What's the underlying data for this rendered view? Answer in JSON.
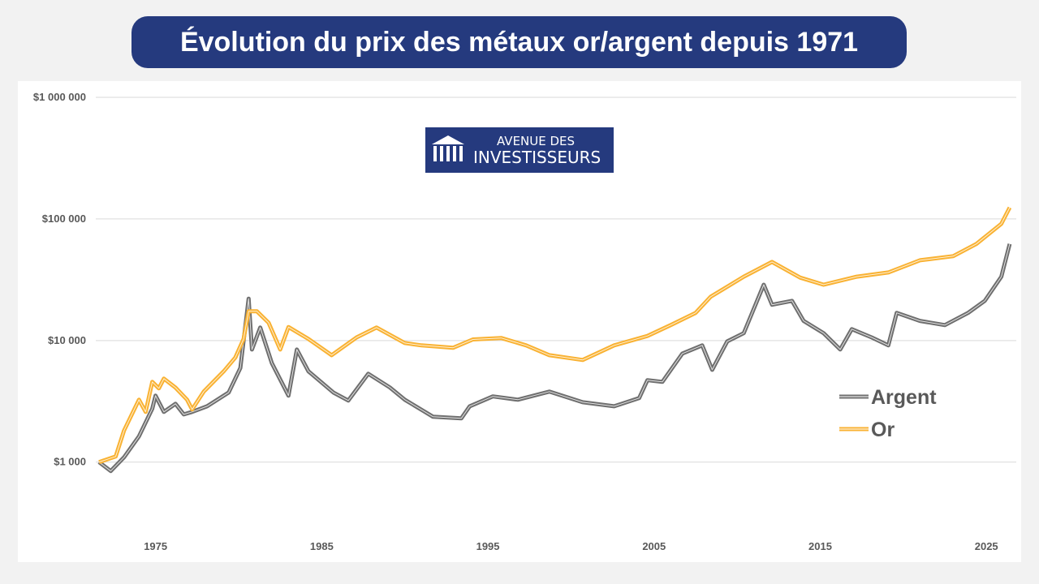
{
  "title": "Évolution du prix des métaux or/argent depuis 1971",
  "logo": {
    "line1": "AVENUE DES",
    "line2": "INVESTISSEURS",
    "color": "#253a7e"
  },
  "chart_data": {
    "type": "line",
    "title": "",
    "xlabel": "",
    "ylabel": "",
    "y_scale": "log",
    "ylim": [
      250,
      1000000
    ],
    "xlim": [
      1971.5,
      2026.7
    ],
    "grid": true,
    "legend_placement": "right",
    "y_ticks": [
      {
        "value": 1000,
        "label": "$1 000"
      },
      {
        "value": 10000,
        "label": "$10 000"
      },
      {
        "value": 100000,
        "label": "$100 000"
      },
      {
        "value": 1000000,
        "label": "$1 000 000"
      }
    ],
    "x_ticks": [
      1975,
      1985,
      1995,
      2005,
      2015,
      2025
    ],
    "series": [
      {
        "name": "Argent",
        "color": "#6f6f6f",
        "x": [
          1971.6,
          1972.3,
          1973.1,
          1974.0,
          1974.8,
          1975.0,
          1975.5,
          1976.2,
          1976.7,
          1977.2,
          1978.1,
          1979.4,
          1980.1,
          1980.6,
          1980.8,
          1981.3,
          1982.0,
          1983.0,
          1983.5,
          1984.2,
          1985.7,
          1986.6,
          1987.8,
          1989.1,
          1990.0,
          1991.7,
          1993.4,
          1993.9,
          1995.3,
          1996.8,
          1998.7,
          2000.7,
          2002.6,
          2004.1,
          2004.6,
          2005.5,
          2006.7,
          2007.9,
          2008.5,
          2009.4,
          2010.4,
          2011.6,
          2012.1,
          2013.3,
          2014.0,
          2015.2,
          2016.2,
          2016.9,
          2018.1,
          2019.1,
          2019.6,
          2021.0,
          2022.5,
          2023.9,
          2024.9,
          2025.9,
          2026.4
        ],
        "y": [
          1000,
          845,
          1096,
          1630,
          2750,
          3520,
          2590,
          3020,
          2470,
          2590,
          2880,
          3740,
          5940,
          22100,
          8430,
          12800,
          6520,
          3520,
          8430,
          5580,
          3740,
          3210,
          5330,
          4110,
          3260,
          2360,
          2290,
          2880,
          3470,
          3260,
          3800,
          3110,
          2880,
          3360,
          4720,
          4570,
          7810,
          9120,
          5750,
          9840,
          11500,
          28800,
          19700,
          21200,
          14500,
          11500,
          8430,
          12400,
          10600,
          9120,
          16900,
          14500,
          13400,
          16900,
          21200,
          33500,
          62300
        ]
      },
      {
        "name": "Or",
        "color": "#f9b233",
        "x": [
          1971.6,
          1972.6,
          1973.1,
          1974.0,
          1974.4,
          1974.8,
          1975.2,
          1975.5,
          1976.2,
          1976.9,
          1977.2,
          1977.9,
          1979.1,
          1979.8,
          1980.3,
          1980.6,
          1981.1,
          1981.8,
          1982.5,
          1983.0,
          1984.2,
          1985.6,
          1987.1,
          1988.3,
          1990.0,
          1991.0,
          1992.9,
          1994.1,
          1995.8,
          1997.3,
          1998.7,
          2000.7,
          2002.6,
          2004.6,
          2006.0,
          2007.5,
          2008.4,
          2010.4,
          2012.1,
          2013.8,
          2015.2,
          2017.2,
          2019.1,
          2021.0,
          2023.0,
          2024.4,
          2025.9,
          2026.4
        ],
        "y": [
          1000,
          1113,
          1820,
          3260,
          2590,
          4570,
          4040,
          4860,
          4100,
          3260,
          2710,
          3800,
          5580,
          7250,
          10300,
          17400,
          17400,
          14000,
          8430,
          12900,
          10300,
          7580,
          10600,
          12800,
          9540,
          9120,
          8710,
          10200,
          10500,
          9120,
          7580,
          6920,
          9120,
          10900,
          13400,
          16900,
          22900,
          33500,
          44300,
          32900,
          28800,
          33500,
          36300,
          45700,
          49400,
          62300,
          91200,
          124000
        ]
      }
    ]
  }
}
